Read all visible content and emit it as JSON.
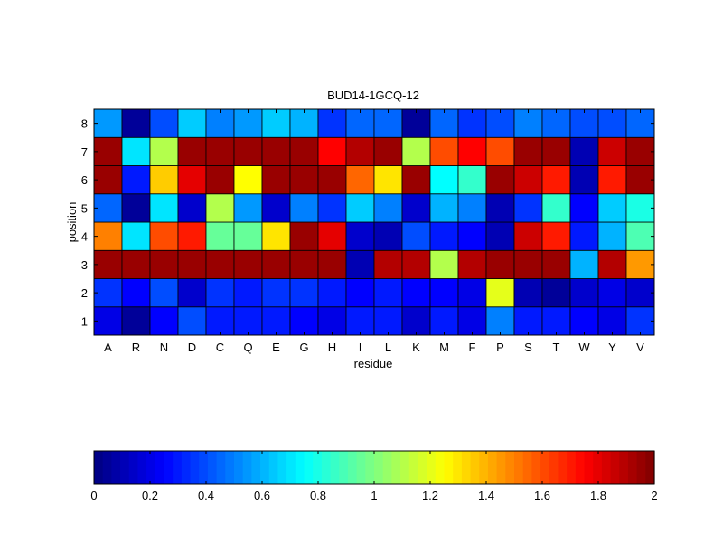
{
  "chart_data": {
    "type": "heatmap",
    "title": "BUD14-1GCQ-12",
    "xlabel": "residue",
    "ylabel": "position",
    "x_categories": [
      "A",
      "R",
      "N",
      "D",
      "C",
      "Q",
      "E",
      "G",
      "H",
      "I",
      "L",
      "K",
      "M",
      "F",
      "P",
      "S",
      "T",
      "W",
      "Y",
      "V"
    ],
    "y_categories": [
      "1",
      "2",
      "3",
      "4",
      "5",
      "6",
      "7",
      "8"
    ],
    "colormap": "jet",
    "clim": [
      0,
      2
    ],
    "values": [
      [
        0.2,
        0.05,
        0.25,
        0.4,
        0.3,
        0.3,
        0.3,
        0.25,
        0.2,
        0.3,
        0.3,
        0.15,
        0.3,
        0.2,
        0.5,
        0.3,
        0.3,
        0.25,
        0.2,
        0.35
      ],
      [
        0.35,
        0.25,
        0.4,
        0.15,
        0.35,
        0.3,
        0.35,
        0.35,
        0.3,
        0.25,
        0.3,
        0.25,
        0.25,
        0.2,
        1.2,
        0.1,
        0.05,
        0.15,
        0.2,
        0.15
      ],
      [
        1.95,
        1.95,
        1.95,
        1.95,
        1.95,
        1.95,
        1.95,
        1.95,
        1.95,
        0.1,
        1.9,
        1.9,
        1.1,
        1.9,
        1.95,
        1.95,
        1.95,
        0.6,
        1.9,
        1.45
      ],
      [
        1.5,
        0.7,
        1.6,
        1.7,
        0.95,
        0.95,
        1.3,
        1.95,
        1.8,
        0.15,
        0.1,
        0.4,
        0.3,
        0.25,
        0.1,
        1.85,
        1.7,
        0.3,
        0.6,
        0.9
      ],
      [
        0.45,
        0.05,
        0.7,
        0.15,
        1.1,
        0.55,
        0.15,
        0.5,
        0.35,
        0.65,
        0.5,
        0.15,
        0.6,
        0.5,
        0.1,
        0.35,
        0.85,
        0.25,
        0.65,
        0.8
      ],
      [
        1.95,
        0.3,
        1.35,
        1.8,
        1.95,
        1.25,
        1.95,
        1.95,
        1.95,
        1.55,
        1.3,
        1.95,
        0.75,
        0.85,
        1.95,
        1.85,
        1.7,
        0.1,
        1.7,
        1.95
      ],
      [
        1.95,
        0.7,
        1.1,
        1.95,
        1.95,
        1.95,
        1.95,
        1.95,
        1.75,
        1.9,
        1.95,
        1.1,
        1.6,
        1.75,
        1.6,
        1.95,
        1.95,
        0.1,
        1.85,
        1.95
      ],
      [
        0.55,
        0.05,
        0.4,
        0.65,
        0.5,
        0.55,
        0.65,
        0.6,
        0.35,
        0.45,
        0.45,
        0.05,
        0.45,
        0.35,
        0.4,
        0.5,
        0.45,
        0.4,
        0.4,
        0.45
      ]
    ],
    "colorbar": {
      "ticks": [
        "0",
        "0.2",
        "0.4",
        "0.6",
        "0.8",
        "1",
        "1.2",
        "1.4",
        "1.6",
        "1.8",
        "2"
      ]
    }
  }
}
